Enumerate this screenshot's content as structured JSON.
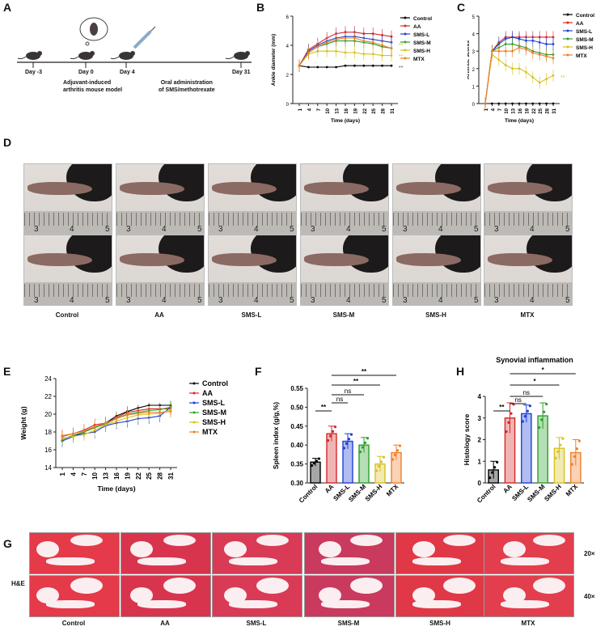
{
  "panels": {
    "A": "A",
    "B": "B",
    "C": "C",
    "D": "D",
    "E": "E",
    "F": "F",
    "G": "G",
    "H": "H"
  },
  "timeline": {
    "days": [
      "Day -3",
      "Day 0",
      "Day 4",
      "Day 31"
    ],
    "note1": [
      "Adjuvant-induced",
      "arthritis mouse model"
    ],
    "note2": [
      "Oral administration",
      "of SMS/methotrexate"
    ]
  },
  "groups": [
    "Control",
    "AA",
    "SMS-L",
    "SMS-M",
    "SMS-H",
    "MTX"
  ],
  "colors": {
    "Control": "#000000",
    "AA": "#d62728",
    "SMS-L": "#1f3fd6",
    "SMS-M": "#2ca02c",
    "SMS-H": "#d6c21f",
    "MTX": "#f07f2a"
  },
  "chart_data": [
    {
      "id": "B",
      "type": "line",
      "xlabel": "Time (days)",
      "ylabel": "Ankle diameter (mm)",
      "ylim": [
        0,
        6
      ],
      "yticks": [
        0,
        2,
        4,
        6
      ],
      "x": [
        1,
        4,
        7,
        10,
        13,
        16,
        19,
        22,
        25,
        28,
        31
      ],
      "series": [
        {
          "name": "Control",
          "values": [
            2.6,
            2.5,
            2.5,
            2.5,
            2.5,
            2.6,
            2.6,
            2.6,
            2.6,
            2.6,
            2.6
          ]
        },
        {
          "name": "AA",
          "values": [
            2.6,
            3.7,
            4.1,
            4.5,
            4.8,
            4.9,
            4.9,
            4.8,
            4.8,
            4.7,
            4.6
          ]
        },
        {
          "name": "SMS-L",
          "values": [
            2.6,
            3.6,
            4.0,
            4.3,
            4.5,
            4.6,
            4.6,
            4.5,
            4.4,
            4.3,
            4.2
          ]
        },
        {
          "name": "SMS-M",
          "values": [
            2.6,
            3.5,
            3.9,
            4.1,
            4.3,
            4.3,
            4.3,
            4.2,
            4.1,
            3.9,
            3.8
          ]
        },
        {
          "name": "SMS-H",
          "values": [
            2.6,
            3.4,
            3.6,
            3.6,
            3.6,
            3.5,
            3.5,
            3.4,
            3.4,
            3.3,
            3.3
          ]
        },
        {
          "name": "MTX",
          "values": [
            2.6,
            3.5,
            3.9,
            4.2,
            4.4,
            4.5,
            4.5,
            4.3,
            4.2,
            4.0,
            3.8
          ]
        }
      ],
      "annotations": [
        "**",
        "**",
        "**"
      ]
    },
    {
      "id": "C",
      "type": "line",
      "xlabel": "Time (days)",
      "ylabel": "Arthritic scores",
      "ylim": [
        0,
        5
      ],
      "yticks": [
        0,
        1,
        2,
        3,
        4,
        5
      ],
      "x": [
        1,
        4,
        7,
        10,
        13,
        16,
        19,
        22,
        25,
        28,
        31
      ],
      "series": [
        {
          "name": "Control",
          "values": [
            0,
            0,
            0,
            0,
            0,
            0,
            0,
            0,
            0,
            0,
            0
          ]
        },
        {
          "name": "AA",
          "values": [
            0,
            3.0,
            3.5,
            3.8,
            3.8,
            3.8,
            3.8,
            3.8,
            3.8,
            3.8,
            3.8
          ]
        },
        {
          "name": "SMS-L",
          "values": [
            0,
            3.0,
            3.4,
            3.7,
            3.8,
            3.7,
            3.6,
            3.6,
            3.5,
            3.4,
            3.4
          ]
        },
        {
          "name": "SMS-M",
          "values": [
            0,
            3.0,
            3.2,
            3.4,
            3.4,
            3.3,
            3.2,
            3.0,
            2.9,
            2.8,
            2.8
          ]
        },
        {
          "name": "SMS-H",
          "values": [
            0,
            2.8,
            2.5,
            2.2,
            2.0,
            2.0,
            1.8,
            1.5,
            1.2,
            1.4,
            1.6
          ]
        },
        {
          "name": "MTX",
          "values": [
            0,
            3.0,
            3.0,
            3.0,
            3.0,
            3.2,
            3.1,
            2.9,
            2.8,
            2.7,
            2.6
          ]
        }
      ],
      "annotations": [
        "**"
      ]
    },
    {
      "id": "E",
      "type": "line",
      "xlabel": "Time (days)",
      "ylabel": "Weight (g)",
      "ylim": [
        14,
        24
      ],
      "yticks": [
        14,
        16,
        18,
        20,
        22,
        24
      ],
      "x": [
        1,
        4,
        7,
        10,
        13,
        16,
        19,
        22,
        25,
        28,
        31
      ],
      "series": [
        {
          "name": "Control",
          "values": [
            17.0,
            17.5,
            18.0,
            18.5,
            19.0,
            19.8,
            20.3,
            20.7,
            21.0,
            21.0,
            21.0
          ]
        },
        {
          "name": "AA",
          "values": [
            17.5,
            17.8,
            18.2,
            18.8,
            19.0,
            19.6,
            20.2,
            20.4,
            20.6,
            20.6,
            20.6
          ]
        },
        {
          "name": "SMS-L",
          "values": [
            17.0,
            17.5,
            17.8,
            18.0,
            18.7,
            19.0,
            19.2,
            19.5,
            19.6,
            19.8,
            20.8
          ]
        },
        {
          "name": "SMS-M",
          "values": [
            17.2,
            17.6,
            18.0,
            18.5,
            18.9,
            19.5,
            20.0,
            20.2,
            20.4,
            20.5,
            20.8
          ]
        },
        {
          "name": "SMS-H",
          "values": [
            17.3,
            17.5,
            17.7,
            18.2,
            18.8,
            19.2,
            19.6,
            19.9,
            20.0,
            20.1,
            20.5
          ]
        },
        {
          "name": "MTX",
          "values": [
            17.6,
            17.8,
            18.1,
            18.6,
            19.0,
            19.5,
            19.9,
            20.1,
            20.2,
            20.2,
            20.3
          ]
        }
      ]
    },
    {
      "id": "F",
      "type": "bar",
      "categories": [
        "Control",
        "AA",
        "SMS-L",
        "SMS-M",
        "SMS-H",
        "MTX"
      ],
      "values": [
        0.355,
        0.43,
        0.41,
        0.4,
        0.35,
        0.38
      ],
      "errors": [
        0.01,
        0.02,
        0.02,
        0.02,
        0.02,
        0.02
      ],
      "ylabel": "Spleen index (g/g,%)",
      "ylim": [
        0.3,
        0.55
      ],
      "yticks": [
        "0.30",
        "0.35",
        "0.40",
        "0.45",
        "0.50",
        "0.55"
      ],
      "ystep": [
        0.3,
        0.35,
        0.4,
        0.45,
        0.5,
        0.55
      ],
      "sig": [
        "**",
        "ns",
        "ns",
        "**",
        "**"
      ]
    },
    {
      "id": "H",
      "type": "bar",
      "title": "Synovial inflammation",
      "categories": [
        "Control",
        "AA",
        "SMS-L",
        "SMS-M",
        "SMS-H",
        "MTX"
      ],
      "values": [
        0.6,
        3.0,
        3.2,
        3.1,
        1.6,
        1.4
      ],
      "errors": [
        0.4,
        0.7,
        0.4,
        0.6,
        0.5,
        0.6
      ],
      "ylabel": "Histology score",
      "ylim": [
        0,
        4
      ],
      "yticks": [
        "0",
        "1",
        "2",
        "3",
        "4"
      ],
      "ystep": [
        0,
        1,
        2,
        3,
        4
      ],
      "sig": [
        "**",
        "ns",
        "ns",
        "*",
        "*"
      ]
    }
  ],
  "ruler_numbers": [
    "3",
    "4",
    "5"
  ],
  "he": {
    "row_label": "H&E",
    "mag1": "20×",
    "mag2": "40×"
  }
}
